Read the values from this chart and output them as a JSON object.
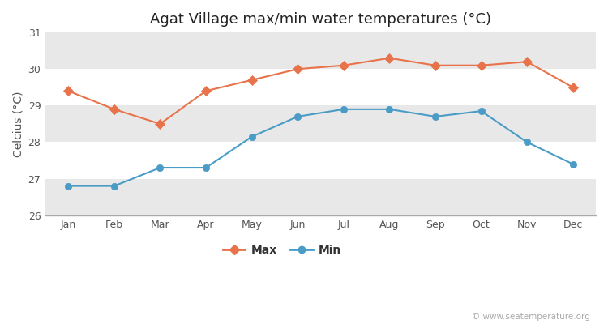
{
  "title": "Agat Village max/min water temperatures (°C)",
  "ylabel": "Celcius (°C)",
  "months": [
    "Jan",
    "Feb",
    "Mar",
    "Apr",
    "May",
    "Jun",
    "Jul",
    "Aug",
    "Sep",
    "Oct",
    "Nov",
    "Dec"
  ],
  "max_temps": [
    29.4,
    28.9,
    28.5,
    29.4,
    29.7,
    30.0,
    30.1,
    30.3,
    30.1,
    30.1,
    30.2,
    29.5
  ],
  "min_temps": [
    26.8,
    26.8,
    27.3,
    27.3,
    28.15,
    28.7,
    28.9,
    28.9,
    28.7,
    28.85,
    28.0,
    27.4
  ],
  "max_color": "#e8724a",
  "min_color": "#4a9cc7",
  "fig_bg_color": "#ffffff",
  "plot_bg_color": "#ffffff",
  "band_color": "#e8e8e8",
  "ylim": [
    26,
    31
  ],
  "yticks": [
    26,
    27,
    28,
    29,
    30,
    31
  ],
  "legend_labels": [
    "Max",
    "Min"
  ],
  "watermark": "© www.seatemperature.org",
  "title_fontsize": 13,
  "label_fontsize": 10,
  "tick_fontsize": 9,
  "legend_fontsize": 10
}
